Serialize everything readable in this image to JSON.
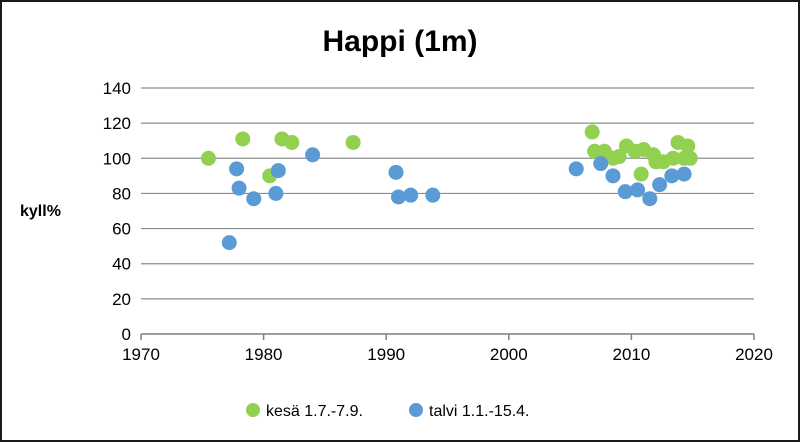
{
  "chart_data": {
    "type": "scatter",
    "title": "Happi (1m)",
    "ylabel": "kyll%",
    "xlabel": "",
    "xlim": [
      1970,
      2020
    ],
    "ylim": [
      0,
      140
    ],
    "x_ticks": [
      1970,
      1980,
      1990,
      2000,
      2010,
      2020
    ],
    "y_ticks": [
      0,
      20,
      40,
      60,
      80,
      100,
      120,
      140
    ],
    "grid": "horizontal",
    "legend_position": "bottom",
    "series": [
      {
        "name": "kesä 1.7.-7.9.",
        "color": "#92d050",
        "points": [
          [
            1975.5,
            100
          ],
          [
            1978.3,
            111
          ],
          [
            1980.5,
            90
          ],
          [
            1981.5,
            111
          ],
          [
            1982.3,
            109
          ],
          [
            1987.3,
            109
          ],
          [
            2006.8,
            115
          ],
          [
            2007.0,
            104
          ],
          [
            2007.8,
            104
          ],
          [
            2008.5,
            100
          ],
          [
            2009.0,
            101
          ],
          [
            2009.6,
            107
          ],
          [
            2010.3,
            104
          ],
          [
            2010.8,
            91
          ],
          [
            2011.0,
            105
          ],
          [
            2011.8,
            102
          ],
          [
            2012.0,
            98
          ],
          [
            2012.6,
            98
          ],
          [
            2013.4,
            100
          ],
          [
            2013.8,
            109
          ],
          [
            2014.3,
            100
          ],
          [
            2014.6,
            107
          ],
          [
            2014.8,
            100
          ]
        ]
      },
      {
        "name": "talvi 1.1.-15.4.",
        "color": "#5b9bd5",
        "points": [
          [
            1977.2,
            52
          ],
          [
            1977.8,
            94
          ],
          [
            1978.0,
            83
          ],
          [
            1979.2,
            77
          ],
          [
            1981.0,
            80
          ],
          [
            1981.2,
            93
          ],
          [
            1984.0,
            102
          ],
          [
            1990.8,
            92
          ],
          [
            1991.0,
            78
          ],
          [
            1992.0,
            79
          ],
          [
            1993.8,
            79
          ],
          [
            2005.5,
            94
          ],
          [
            2007.5,
            97
          ],
          [
            2008.5,
            90
          ],
          [
            2009.5,
            81
          ],
          [
            2010.5,
            82
          ],
          [
            2011.5,
            77
          ],
          [
            2012.3,
            85
          ],
          [
            2013.3,
            90
          ],
          [
            2014.3,
            91
          ]
        ]
      }
    ]
  }
}
